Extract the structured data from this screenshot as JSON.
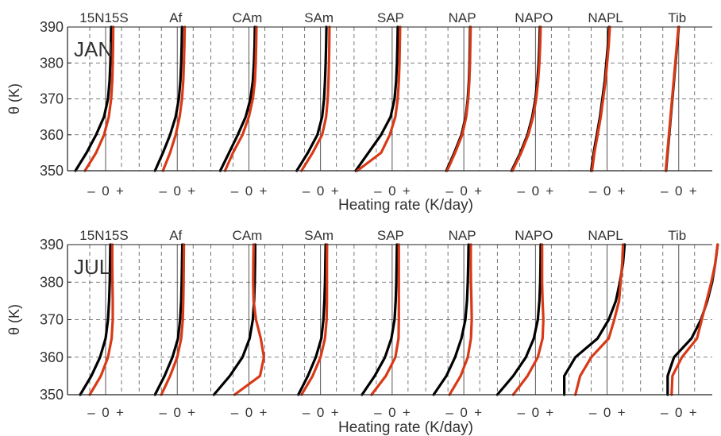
{
  "chart_data": [
    {
      "type": "line",
      "label": "JAN",
      "ylabel": "θ (K)",
      "xlabel": "Heating rate (K/day)",
      "ylim": [
        350,
        390
      ],
      "yticks": [
        350,
        360,
        370,
        380,
        390
      ],
      "x_tick_labels": [
        "–",
        "0",
        "+"
      ],
      "grid": true,
      "series_colors": [
        "#000000",
        "#d83a17"
      ],
      "panels": [
        {
          "name": "15N15S",
          "theta": [
            350,
            355,
            360,
            365,
            370,
            375,
            380,
            385,
            390
          ],
          "series": [
            {
              "color": "#000000",
              "values": [
                -1.9,
                -1.2,
                -0.6,
                -0.1,
                0.15,
                0.25,
                0.3,
                0.33,
                0.35
              ]
            },
            {
              "color": "#d83a17",
              "values": [
                -1.3,
                -0.6,
                -0.1,
                0.2,
                0.35,
                0.42,
                0.45,
                0.47,
                0.48
              ]
            }
          ]
        },
        {
          "name": "Af",
          "theta": [
            350,
            355,
            360,
            365,
            370,
            375,
            380,
            385,
            390
          ],
          "series": [
            {
              "color": "#000000",
              "values": [
                -1.4,
                -0.9,
                -0.45,
                -0.1,
                0.1,
                0.2,
                0.25,
                0.28,
                0.3
              ]
            },
            {
              "color": "#d83a17",
              "values": [
                -0.9,
                -0.45,
                -0.1,
                0.15,
                0.3,
                0.38,
                0.42,
                0.45,
                0.47
              ]
            }
          ]
        },
        {
          "name": "CAm",
          "theta": [
            350,
            355,
            360,
            365,
            370,
            375,
            380,
            385,
            390
          ],
          "series": [
            {
              "color": "#000000",
              "values": [
                -1.8,
                -1.25,
                -0.7,
                -0.2,
                0.1,
                0.25,
                0.32,
                0.36,
                0.38
              ]
            },
            {
              "color": "#d83a17",
              "values": [
                -1.5,
                -1.0,
                -0.4,
                0.0,
                0.25,
                0.38,
                0.43,
                0.46,
                0.48
              ]
            }
          ]
        },
        {
          "name": "SAm",
          "theta": [
            350,
            355,
            360,
            365,
            370,
            375,
            380,
            385,
            390
          ],
          "series": [
            {
              "color": "#000000",
              "values": [
                -1.5,
                -0.8,
                -0.2,
                0.1,
                0.22,
                0.28,
                0.32,
                0.35,
                0.37
              ]
            },
            {
              "color": "#d83a17",
              "values": [
                -1.2,
                -0.5,
                0.1,
                0.35,
                0.45,
                0.5,
                0.53,
                0.55,
                0.56
              ]
            }
          ]
        },
        {
          "name": "SAP",
          "theta": [
            350,
            355,
            360,
            365,
            370,
            375,
            380,
            385,
            390
          ],
          "series": [
            {
              "color": "#000000",
              "values": [
                -2.3,
                -1.5,
                -0.7,
                -0.1,
                0.15,
                0.25,
                0.3,
                0.33,
                0.35
              ]
            },
            {
              "color": "#d83a17",
              "values": [
                -2.2,
                -0.7,
                -0.15,
                0.2,
                0.35,
                0.42,
                0.46,
                0.48,
                0.5
              ]
            }
          ]
        },
        {
          "name": "NAP",
          "theta": [
            350,
            355,
            360,
            365,
            370,
            375,
            380,
            385,
            390
          ],
          "series": [
            {
              "color": "#000000",
              "values": [
                -1.1,
                -0.6,
                -0.15,
                0.12,
                0.25,
                0.32,
                0.36,
                0.38,
                0.4
              ]
            },
            {
              "color": "#d83a17",
              "values": [
                -1.05,
                -0.55,
                -0.1,
                0.15,
                0.28,
                0.35,
                0.39,
                0.41,
                0.43
              ]
            }
          ]
        },
        {
          "name": "NAPO",
          "theta": [
            350,
            355,
            360,
            365,
            370,
            375,
            380,
            385,
            390
          ],
          "series": [
            {
              "color": "#000000",
              "values": [
                -1.5,
                -0.95,
                -0.5,
                -0.2,
                0.0,
                0.12,
                0.2,
                0.25,
                0.28
              ]
            },
            {
              "color": "#d83a17",
              "values": [
                -1.45,
                -0.9,
                -0.45,
                -0.15,
                0.05,
                0.17,
                0.25,
                0.3,
                0.33
              ]
            }
          ]
        },
        {
          "name": "NAPL",
          "theta": [
            350,
            355,
            360,
            365,
            370,
            375,
            380,
            385,
            390
          ],
          "series": [
            {
              "color": "#000000",
              "values": [
                -1.0,
                -0.85,
                -0.65,
                -0.45,
                -0.3,
                -0.15,
                -0.05,
                0.05,
                0.12
              ]
            },
            {
              "color": "#d83a17",
              "values": [
                -0.95,
                -0.8,
                -0.6,
                -0.4,
                -0.25,
                -0.1,
                0.0,
                0.1,
                0.17
              ]
            }
          ]
        },
        {
          "name": "Tib",
          "theta": [
            350,
            355,
            360,
            365,
            370,
            375,
            380,
            385,
            390
          ],
          "series": [
            {
              "color": "#000000",
              "values": [
                -0.8,
                -0.7,
                -0.6,
                -0.5,
                -0.4,
                -0.3,
                -0.2,
                -0.1,
                0.0
              ]
            },
            {
              "color": "#d83a17",
              "values": [
                -0.82,
                -0.72,
                -0.62,
                -0.52,
                -0.42,
                -0.32,
                -0.22,
                -0.12,
                -0.02
              ]
            }
          ]
        }
      ]
    },
    {
      "type": "line",
      "label": "JUL",
      "ylabel": "θ (K)",
      "xlabel": "Heating rate (K/day)",
      "ylim": [
        350,
        390
      ],
      "yticks": [
        350,
        360,
        370,
        380,
        390
      ],
      "x_tick_labels": [
        "–",
        "0",
        "+"
      ],
      "grid": true,
      "series_colors": [
        "#000000",
        "#d83a17"
      ],
      "panels": [
        {
          "name": "15N15S",
          "theta": [
            350,
            355,
            360,
            365,
            370,
            375,
            380,
            385,
            390
          ],
          "series": [
            {
              "color": "#000000",
              "values": [
                -1.6,
                -0.9,
                -0.35,
                0.0,
                0.15,
                0.22,
                0.26,
                0.28,
                0.3
              ]
            },
            {
              "color": "#d83a17",
              "values": [
                -1.0,
                -0.3,
                0.15,
                0.38,
                0.45,
                0.45,
                0.43,
                0.42,
                0.42
              ]
            }
          ]
        },
        {
          "name": "Af",
          "theta": [
            350,
            355,
            360,
            365,
            370,
            375,
            380,
            385,
            390
          ],
          "series": [
            {
              "color": "#000000",
              "values": [
                -1.4,
                -0.8,
                -0.3,
                0.05,
                0.18,
                0.25,
                0.28,
                0.3,
                0.32
              ]
            },
            {
              "color": "#d83a17",
              "values": [
                -1.0,
                -0.45,
                0.0,
                0.25,
                0.35,
                0.38,
                0.4,
                0.41,
                0.42
              ]
            }
          ]
        },
        {
          "name": "CAm",
          "theta": [
            350,
            355,
            360,
            365,
            370,
            375,
            380,
            385,
            390
          ],
          "series": [
            {
              "color": "#000000",
              "values": [
                -2.2,
                -1.2,
                -0.4,
                0.05,
                0.25,
                0.33,
                0.37,
                0.39,
                0.4
              ]
            },
            {
              "color": "#d83a17",
              "values": [
                -0.9,
                0.7,
                0.95,
                0.75,
                0.45,
                0.3,
                0.27,
                0.28,
                0.3
              ]
            }
          ]
        },
        {
          "name": "SAm",
          "theta": [
            350,
            355,
            360,
            365,
            370,
            375,
            380,
            385,
            390
          ],
          "series": [
            {
              "color": "#000000",
              "values": [
                -1.4,
                -0.8,
                -0.3,
                0.05,
                0.18,
                0.24,
                0.28,
                0.3,
                0.32
              ]
            },
            {
              "color": "#d83a17",
              "values": [
                -1.2,
                -0.5,
                0.0,
                0.28,
                0.38,
                0.4,
                0.4,
                0.4,
                0.41
              ]
            }
          ]
        },
        {
          "name": "SAP",
          "theta": [
            350,
            355,
            360,
            365,
            370,
            375,
            380,
            385,
            390
          ],
          "series": [
            {
              "color": "#000000",
              "values": [
                -1.9,
                -1.1,
                -0.45,
                -0.05,
                0.15,
                0.22,
                0.26,
                0.28,
                0.3
              ]
            },
            {
              "color": "#d83a17",
              "values": [
                -1.3,
                -0.4,
                0.2,
                0.4,
                0.42,
                0.42,
                0.42,
                0.42,
                0.42
              ]
            }
          ]
        },
        {
          "name": "NAP",
          "theta": [
            350,
            355,
            360,
            365,
            370,
            375,
            380,
            385,
            390
          ],
          "series": [
            {
              "color": "#000000",
              "values": [
                -1.9,
                -1.1,
                -0.55,
                -0.15,
                0.1,
                0.2,
                0.25,
                0.28,
                0.3
              ]
            },
            {
              "color": "#d83a17",
              "values": [
                -0.9,
                -0.2,
                0.25,
                0.45,
                0.5,
                0.48,
                0.45,
                0.44,
                0.44
              ]
            }
          ]
        },
        {
          "name": "NAPO",
          "theta": [
            350,
            355,
            360,
            365,
            370,
            375,
            380,
            385,
            390
          ],
          "series": [
            {
              "color": "#000000",
              "values": [
                -2.4,
                -1.4,
                -0.6,
                -0.1,
                0.15,
                0.25,
                0.3,
                0.32,
                0.33
              ]
            },
            {
              "color": "#d83a17",
              "values": [
                -1.4,
                -0.5,
                0.15,
                0.45,
                0.5,
                0.45,
                0.42,
                0.42,
                0.42
              ]
            }
          ]
        },
        {
          "name": "NAPL",
          "theta": [
            350,
            355,
            360,
            365,
            370,
            375,
            380,
            385,
            390
          ],
          "series": [
            {
              "color": "#000000",
              "values": [
                -2.7,
                -2.7,
                -2.0,
                -0.6,
                0.1,
                0.55,
                0.8,
                1.0,
                1.1
              ]
            },
            {
              "color": "#d83a17",
              "values": [
                -2.0,
                -1.7,
                -1.0,
                0.1,
                0.45,
                0.75,
                0.85,
                0.95,
                1.0
              ]
            }
          ]
        },
        {
          "name": "Tib",
          "theta": [
            350,
            355,
            360,
            365,
            370,
            375,
            380,
            385,
            390
          ],
          "series": [
            {
              "color": "#000000",
              "values": [
                -0.7,
                -0.7,
                -0.3,
                0.8,
                1.4,
                1.8,
                2.1,
                2.3,
                2.45
              ]
            },
            {
              "color": "#d83a17",
              "values": [
                -0.45,
                -0.4,
                0.2,
                1.15,
                1.45,
                1.75,
                2.05,
                2.3,
                2.45
              ]
            }
          ]
        }
      ]
    }
  ]
}
